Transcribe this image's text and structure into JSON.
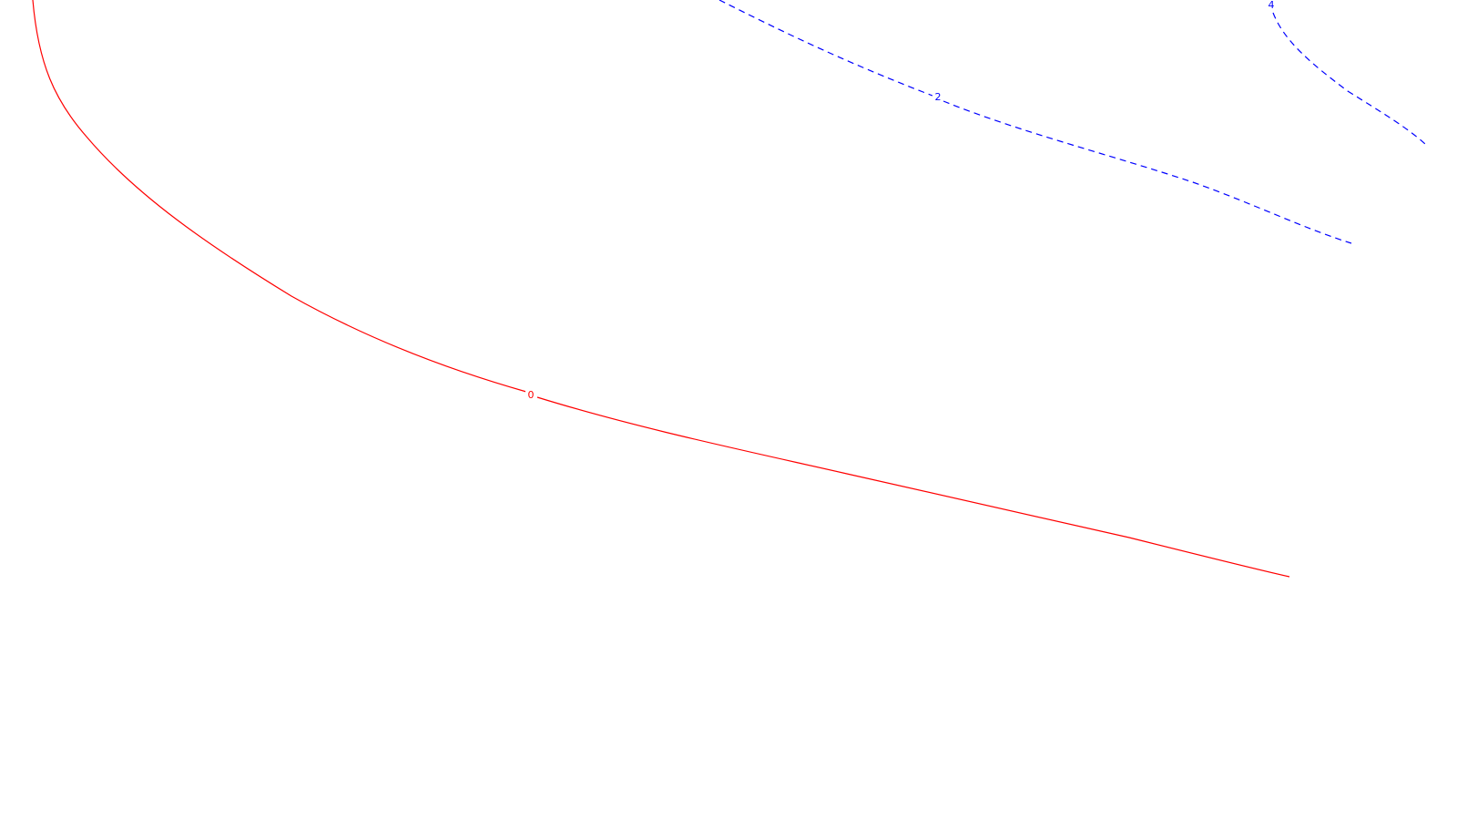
{
  "contours": [
    {
      "id": "contour-0",
      "label": "0",
      "color": "#ff0000",
      "style": "solid"
    },
    {
      "id": "contour-2",
      "label": "2",
      "color": "#0000ff",
      "style": "dashed"
    },
    {
      "id": "contour-4",
      "label": "4",
      "color": "#0000ff",
      "style": "dashed"
    }
  ]
}
